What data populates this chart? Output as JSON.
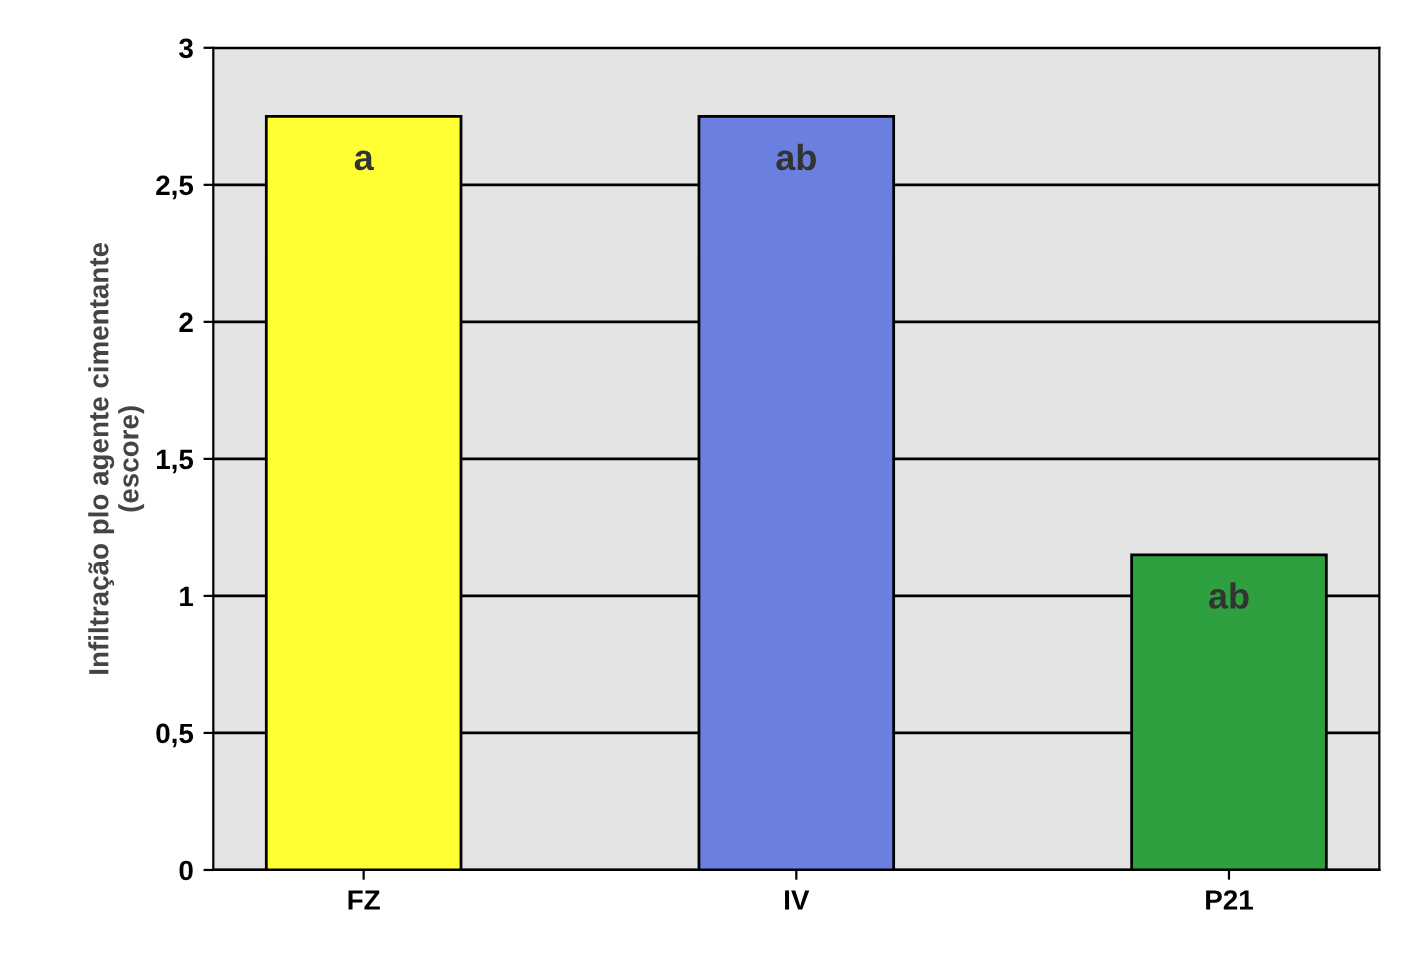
{
  "chart_data": {
    "type": "bar",
    "ylabel": "Infiltração plo agente cimentante\n(escore)",
    "categories": [
      "FZ",
      "IV",
      "P21"
    ],
    "values": [
      2.75,
      2.75,
      1.15
    ],
    "colors": [
      "#ffff33",
      "#6a7fe0",
      "#2fa040"
    ],
    "ylim": [
      0,
      3
    ],
    "yticks": [
      0,
      {
        "value": 0.5,
        "label": "0,5"
      },
      1,
      {
        "value": 1.5,
        "label": "1,5"
      },
      2,
      {
        "value": 2.5,
        "label": "2,5"
      },
      3
    ],
    "grid": "y",
    "value_labels": [
      "a",
      "ab",
      "ab"
    ]
  }
}
